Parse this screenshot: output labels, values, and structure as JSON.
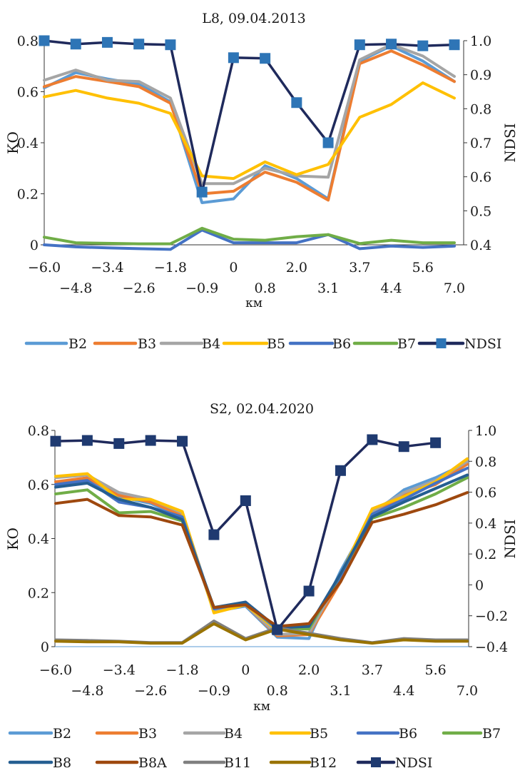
{
  "chart_data": [
    {
      "type": "line",
      "title": "L8, 09.04.2013",
      "xlabel": "км",
      "ylabel": "КО",
      "y2label": "NDSI",
      "ylim": [
        0,
        0.8
      ],
      "y2lim": [
        0.4,
        1.0
      ],
      "yticks": [
        "0",
        "0.2",
        "0.4",
        "0.6",
        "0.8"
      ],
      "y2ticks": [
        "0.4",
        "0.5",
        "0.6",
        "0.7",
        "0.8",
        "0.9",
        "1.0"
      ],
      "categories": [
        "−6.0",
        "−4.8",
        "−3.4",
        "−2.6",
        "−1.8",
        "−0.9",
        "0",
        "0.8",
        "2.0",
        "3.1",
        "3.7",
        "4.4",
        "5.6",
        "7.0"
      ],
      "legend_position": "bottom",
      "series": [
        {
          "name": "B2",
          "color": "#5b9bd5",
          "axis": "left",
          "values": [
            0.615,
            0.675,
            0.65,
            0.63,
            0.56,
            0.165,
            0.18,
            0.31,
            0.26,
            0.18,
            0.72,
            0.78,
            0.72,
            0.64
          ]
        },
        {
          "name": "B3",
          "color": "#ed7d31",
          "axis": "left",
          "values": [
            0.62,
            0.66,
            0.64,
            0.62,
            0.555,
            0.2,
            0.21,
            0.285,
            0.245,
            0.175,
            0.71,
            0.76,
            0.705,
            0.64
          ]
        },
        {
          "name": "B4",
          "color": "#a5a5a5",
          "axis": "left",
          "values": [
            0.645,
            0.685,
            0.645,
            0.64,
            0.575,
            0.24,
            0.24,
            0.3,
            0.27,
            0.265,
            0.725,
            0.785,
            0.74,
            0.66
          ]
        },
        {
          "name": "B5",
          "color": "#ffc000",
          "axis": "left",
          "values": [
            0.58,
            0.605,
            0.575,
            0.555,
            0.515,
            0.27,
            0.26,
            0.325,
            0.275,
            0.315,
            0.5,
            0.55,
            0.635,
            0.575
          ]
        },
        {
          "name": "B6",
          "color": "#4472c4",
          "axis": "left",
          "values": [
            0,
            -0.008,
            -0.012,
            -0.015,
            -0.018,
            0.058,
            0.008,
            0.008,
            0.008,
            0.04,
            -0.015,
            -0.005,
            -0.01,
            -0.005
          ]
        },
        {
          "name": "B7",
          "color": "#70ad47",
          "axis": "left",
          "values": [
            0.03,
            0.008,
            0.006,
            0.004,
            0.004,
            0.065,
            0.022,
            0.018,
            0.032,
            0.04,
            0.005,
            0.018,
            0.008,
            0.008
          ]
        },
        {
          "name": "NDSI",
          "color": "#1f2a5c",
          "axis": "right",
          "marker": "square",
          "markerColor": "#2e75b6",
          "values": [
            1.0,
            0.99,
            0.995,
            0.99,
            0.988,
            0.555,
            0.95,
            0.948,
            0.818,
            0.7,
            0.988,
            0.99,
            0.985,
            0.988
          ]
        }
      ]
    },
    {
      "type": "line",
      "title": "S2, 02.04.2020",
      "xlabel": "км",
      "ylabel": "КО",
      "y2label": "NDSI",
      "ylim": [
        0,
        0.8
      ],
      "y2lim": [
        -0.4,
        1.0
      ],
      "yticks": [
        "0",
        "0.2",
        "0.4",
        "0.6",
        "0.8"
      ],
      "y2ticks": [
        "−0.4",
        "−0.2",
        "0",
        "0.2",
        "0.4",
        "0.6",
        "0.8",
        "1.0"
      ],
      "categories": [
        "−6.0",
        "−4.8",
        "−3.4",
        "−2.6",
        "−1.8",
        "−0.9",
        "0",
        "0.8",
        "2.0",
        "3.1",
        "3.7",
        "4.4",
        "5.6",
        "7.0"
      ],
      "legend_position": "bottom",
      "series": [
        {
          "name": "B2",
          "color": "#5b9bd5",
          "axis": "left",
          "values": [
            0.6,
            0.615,
            0.555,
            0.53,
            0.48,
            0.13,
            0.15,
            0.035,
            0.03,
            0.28,
            0.49,
            0.58,
            0.625,
            0.68
          ]
        },
        {
          "name": "B3",
          "color": "#ed7d31",
          "axis": "left",
          "values": [
            0.61,
            0.625,
            0.56,
            0.535,
            0.485,
            0.135,
            0.155,
            0.04,
            0.045,
            0.24,
            0.49,
            0.56,
            0.6,
            0.675
          ]
        },
        {
          "name": "B4",
          "color": "#a5a5a5",
          "axis": "left",
          "values": [
            0.625,
            0.635,
            0.57,
            0.545,
            0.495,
            0.135,
            0.155,
            0.045,
            0.05,
            0.26,
            0.5,
            0.57,
            0.615,
            0.685
          ]
        },
        {
          "name": "B5",
          "color": "#ffc000",
          "axis": "left",
          "values": [
            0.63,
            0.64,
            0.545,
            0.545,
            0.5,
            0.125,
            0.155,
            0.06,
            0.07,
            0.265,
            0.51,
            0.555,
            0.61,
            0.695
          ]
        },
        {
          "name": "B6",
          "color": "#4472c4",
          "axis": "left",
          "values": [
            0.6,
            0.615,
            0.535,
            0.515,
            0.48,
            0.14,
            0.16,
            0.065,
            0.07,
            0.26,
            0.49,
            0.545,
            0.605,
            0.66
          ]
        },
        {
          "name": "B7",
          "color": "#70ad47",
          "axis": "left",
          "values": [
            0.565,
            0.58,
            0.495,
            0.5,
            0.465,
            0.145,
            0.16,
            0.07,
            0.065,
            0.27,
            0.475,
            0.515,
            0.565,
            0.625
          ]
        },
        {
          "name": "B8",
          "color": "#255e91",
          "axis": "left",
          "values": [
            0.59,
            0.605,
            0.545,
            0.515,
            0.47,
            0.145,
            0.165,
            0.07,
            0.075,
            0.27,
            0.48,
            0.535,
            0.585,
            0.635
          ]
        },
        {
          "name": "B8A",
          "color": "#9e480e",
          "axis": "left",
          "values": [
            0.53,
            0.545,
            0.485,
            0.48,
            0.45,
            0.145,
            0.155,
            0.075,
            0.085,
            0.24,
            0.46,
            0.49,
            0.525,
            0.57
          ]
        },
        {
          "name": "B11",
          "color": "#7f7f7f",
          "axis": "left",
          "values": [
            0.025,
            0.023,
            0.02,
            0.015,
            0.015,
            0.095,
            0.03,
            0.07,
            0.05,
            0.03,
            0.015,
            0.03,
            0.025,
            0.025
          ]
        },
        {
          "name": "B12",
          "color": "#997300",
          "axis": "left",
          "values": [
            0.02,
            0.018,
            0.018,
            0.013,
            0.013,
            0.085,
            0.025,
            0.065,
            0.045,
            0.025,
            0.013,
            0.025,
            0.02,
            0.02
          ]
        },
        {
          "name": "NDSI",
          "color": "#1f2a5c",
          "axis": "right",
          "marker": "square",
          "markerColor": "#1f3a70",
          "values": [
            0.93,
            0.935,
            0.915,
            0.935,
            0.93,
            0.325,
            0.545,
            -0.29,
            -0.04,
            0.74,
            0.94,
            0.895,
            0.92,
            null
          ]
        }
      ]
    }
  ]
}
